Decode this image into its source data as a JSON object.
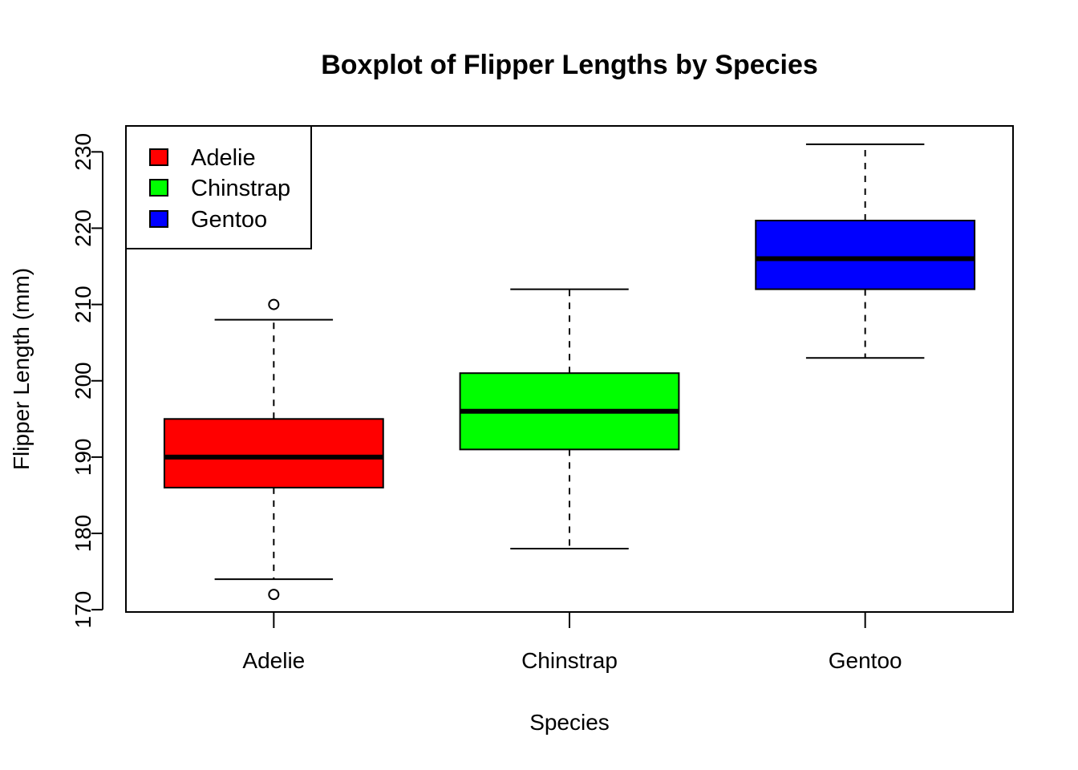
{
  "chart_data": {
    "type": "boxplot",
    "title": "Boxplot of Flipper Lengths by Species",
    "xlabel": "Species",
    "ylabel": "Flipper Length (mm)",
    "ylim": [
      169.7,
      233.4
    ],
    "yticks": [
      170,
      180,
      190,
      200,
      210,
      220,
      230
    ],
    "categories": [
      "Adelie",
      "Chinstrap",
      "Gentoo"
    ],
    "colors": [
      "#ff0000",
      "#00ff00",
      "#0000ff"
    ],
    "boxes": [
      {
        "category": "Adelie",
        "whisker_low": 174,
        "q1": 186,
        "median": 190,
        "q3": 195,
        "whisker_high": 208,
        "outliers": [
          172,
          210
        ]
      },
      {
        "category": "Chinstrap",
        "whisker_low": 178,
        "q1": 191,
        "median": 196,
        "q3": 201,
        "whisker_high": 212,
        "outliers": []
      },
      {
        "category": "Gentoo",
        "whisker_low": 203,
        "q1": 212,
        "median": 216,
        "q3": 221,
        "whisker_high": 231,
        "outliers": []
      }
    ],
    "legend": {
      "placement": "top-left",
      "entries": [
        {
          "label": "Adelie",
          "color": "#ff0000"
        },
        {
          "label": "Chinstrap",
          "color": "#00ff00"
        },
        {
          "label": "Gentoo",
          "color": "#0000ff"
        }
      ]
    },
    "grid": false
  }
}
